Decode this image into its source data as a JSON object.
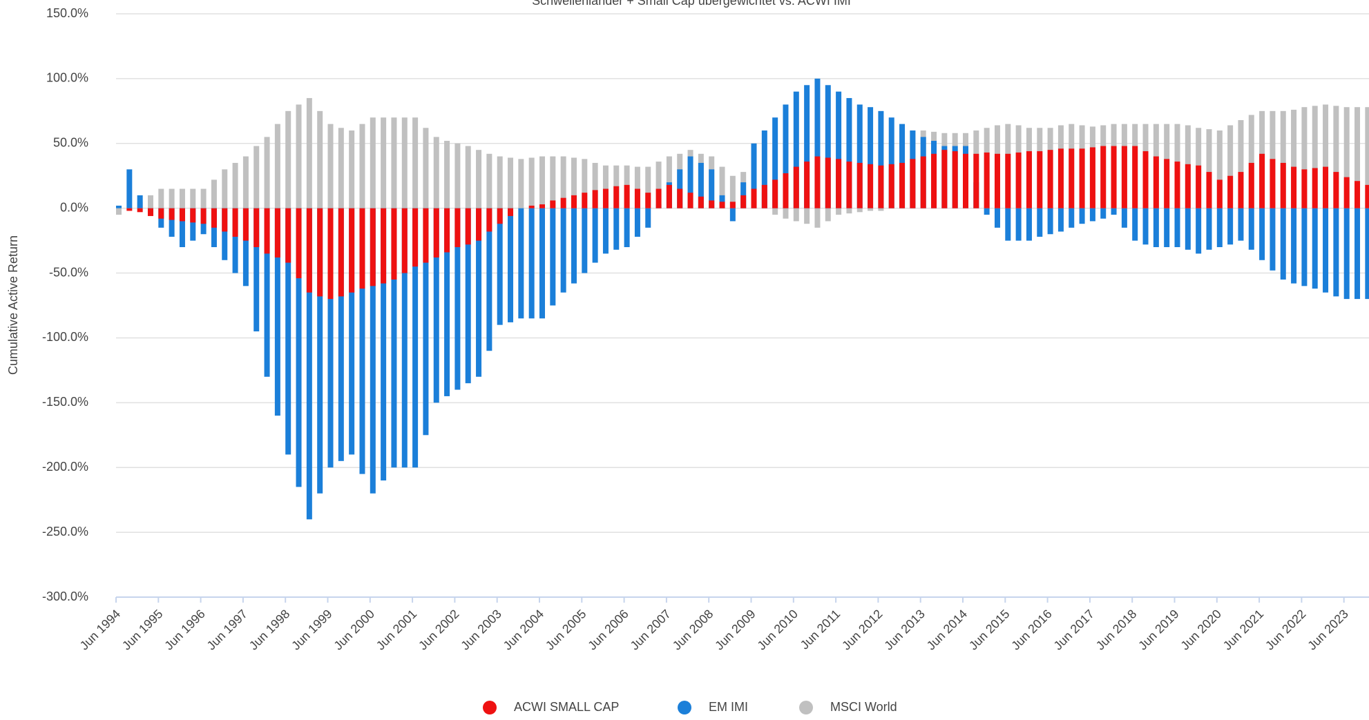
{
  "chart_data": {
    "type": "bar",
    "title": "Schwellenländer + Small Cap übergewichtet vs. ACWI IMI",
    "y_label": "Cumulative Active Return",
    "ylim": [
      -300,
      150
    ],
    "yticks": [
      {
        "value": -300,
        "label": "-300.0%"
      },
      {
        "value": -250,
        "label": "-250.0%"
      },
      {
        "value": -200,
        "label": "-200.0%"
      },
      {
        "value": -150,
        "label": "-150.0%"
      },
      {
        "value": -100,
        "label": "-100.0%"
      },
      {
        "value": -50,
        "label": "-50.0%"
      },
      {
        "value": 0,
        "label": "0.0%"
      },
      {
        "value": 50,
        "label": "50.0%"
      },
      {
        "value": 100,
        "label": "100.0%"
      },
      {
        "value": 150,
        "label": "150.0%"
      }
    ],
    "grid": true,
    "legend": "bottom",
    "categories": [
      "Jun 1994",
      null,
      null,
      null,
      "Jun 1995",
      null,
      null,
      null,
      "Jun 1996",
      null,
      null,
      null,
      "Jun 1997",
      null,
      null,
      null,
      "Jun 1998",
      null,
      null,
      null,
      "Jun 1999",
      null,
      null,
      null,
      "Jun 2000",
      null,
      null,
      null,
      "Jun 2001",
      null,
      null,
      null,
      "Jun 2002",
      null,
      null,
      null,
      "Jun 2003",
      null,
      null,
      null,
      "Jun 2004",
      null,
      null,
      null,
      "Jun 2005",
      null,
      null,
      null,
      "Jun 2006",
      null,
      null,
      null,
      "Jun 2007",
      null,
      null,
      null,
      "Jun 2008",
      null,
      null,
      null,
      "Jun 2009",
      null,
      null,
      null,
      "Jun 2010",
      null,
      null,
      null,
      "Jun 2011",
      null,
      null,
      null,
      "Jun 2012",
      null,
      null,
      null,
      "Jun 2013",
      null,
      null,
      null,
      "Jun 2014",
      null,
      null,
      null,
      "Jun 2015",
      null,
      null,
      null,
      "Jun 2016",
      null,
      null,
      null,
      "Jun 2017",
      null,
      null,
      null,
      "Jun 2018",
      null,
      null,
      null,
      "Jun 2019",
      null,
      null,
      null,
      "Jun 2020",
      null,
      null,
      null,
      "Jun 2021",
      null,
      null,
      null,
      "Jun 2022",
      null,
      null,
      null,
      "Jun 2023",
      null,
      null
    ],
    "series": [
      {
        "name": "ACWI SMALL CAP",
        "color": "#ee1111",
        "values": [
          0,
          -2,
          -3,
          -6,
          -8,
          -9,
          -10,
          -11,
          -12,
          -15,
          -18,
          -22,
          -25,
          -30,
          -35,
          -38,
          -42,
          -54,
          -65,
          -68,
          -70,
          -68,
          -65,
          -62,
          -60,
          -58,
          -55,
          -50,
          -45,
          -42,
          -38,
          -34,
          -30,
          -28,
          -25,
          -18,
          -12,
          -6,
          0,
          2,
          3,
          6,
          8,
          10,
          12,
          14,
          15,
          17,
          18,
          15,
          12,
          15,
          18,
          15,
          12,
          9,
          6,
          5,
          5,
          10,
          15,
          18,
          22,
          27,
          32,
          36,
          40,
          39,
          38,
          36,
          35,
          34,
          33,
          34,
          35,
          38,
          40,
          42,
          45,
          44,
          42,
          42,
          43,
          42,
          42,
          43,
          44,
          44,
          45,
          46,
          46,
          46,
          47,
          48,
          48,
          48,
          48,
          44,
          40,
          38,
          36,
          34,
          33,
          28,
          22,
          25,
          28,
          35,
          42,
          38,
          35,
          32,
          30,
          31,
          32,
          28,
          24,
          21,
          18
        ]
      },
      {
        "name": "EM IMI",
        "color": "#1b7fd9",
        "values": [
          2,
          30,
          10,
          -3,
          -15,
          -22,
          -30,
          -25,
          -20,
          -30,
          -40,
          -50,
          -60,
          -95,
          -130,
          -160,
          -190,
          -215,
          -240,
          -220,
          -200,
          -195,
          -190,
          -205,
          -220,
          -210,
          -200,
          -200,
          -200,
          -175,
          -150,
          -145,
          -140,
          -135,
          -130,
          -110,
          -90,
          -88,
          -85,
          -85,
          -85,
          -75,
          -65,
          -58,
          -50,
          -42,
          -35,
          -32,
          -30,
          -22,
          -15,
          3,
          20,
          30,
          40,
          35,
          30,
          10,
          -10,
          20,
          50,
          60,
          70,
          80,
          90,
          95,
          100,
          95,
          90,
          85,
          80,
          78,
          75,
          70,
          65,
          60,
          55,
          52,
          48,
          48,
          48,
          20,
          -5,
          -15,
          -25,
          -25,
          -25,
          -22,
          -20,
          -18,
          -15,
          -12,
          -10,
          -8,
          -5,
          -15,
          -25,
          -28,
          -30,
          -30,
          -30,
          -32,
          -35,
          -32,
          -30,
          -28,
          -25,
          -32,
          -40,
          -48,
          -55,
          -58,
          -60,
          -62,
          -65,
          -68,
          -70,
          -70,
          -70
        ]
      },
      {
        "name": "MSCI World",
        "color": "#c0c0c0",
        "values": [
          -5,
          0,
          5,
          10,
          15,
          15,
          15,
          15,
          15,
          22,
          30,
          35,
          40,
          48,
          55,
          65,
          75,
          80,
          85,
          75,
          65,
          62,
          60,
          65,
          70,
          70,
          70,
          70,
          70,
          62,
          55,
          52,
          50,
          48,
          45,
          42,
          40,
          39,
          38,
          39,
          40,
          40,
          40,
          39,
          38,
          35,
          33,
          33,
          33,
          32,
          32,
          36,
          40,
          42,
          45,
          42,
          40,
          32,
          25,
          28,
          30,
          12,
          -5,
          -8,
          -10,
          -12,
          -15,
          -10,
          -5,
          -4,
          -3,
          -2,
          -2,
          30,
          60,
          60,
          60,
          59,
          58,
          58,
          58,
          60,
          62,
          64,
          65,
          64,
          62,
          62,
          62,
          64,
          65,
          64,
          63,
          64,
          65,
          65,
          65,
          65,
          65,
          65,
          65,
          64,
          62,
          61,
          60,
          64,
          68,
          72,
          75,
          75,
          75,
          76,
          78,
          79,
          80,
          79,
          78,
          78,
          78
        ]
      }
    ]
  }
}
